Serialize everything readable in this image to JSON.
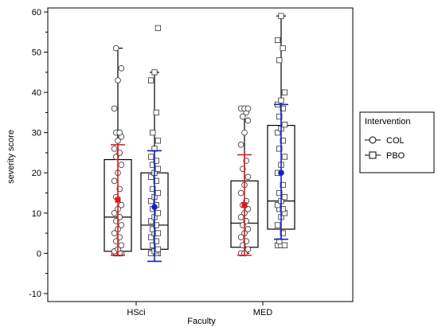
{
  "chart_data": {
    "type": "box",
    "xlabel": "Faculty",
    "ylabel": "severity score",
    "ylim": [
      -12,
      61
    ],
    "yticks": [
      -10,
      0,
      10,
      20,
      30,
      40,
      50,
      60
    ],
    "grid": false,
    "categories": [
      "HSci",
      "MED"
    ],
    "legend": {
      "title": "Intervention",
      "placement": "right",
      "entries": [
        {
          "name": "COL",
          "marker": "circle"
        },
        {
          "name": "PBO",
          "marker": "square"
        }
      ]
    },
    "colors": {
      "COL_mean": "#e8141c",
      "PBO_mean": "#1621cc",
      "box": "#000000",
      "marker_fill": "#ffffff"
    },
    "groups": [
      {
        "category": "HSci",
        "series": "COL",
        "box": {
          "q1": 0.5,
          "median": 9,
          "q3": 23.3,
          "whisker_low": 0,
          "whisker_high": 51
        },
        "mean": 13.3,
        "sd_low": -0.5,
        "sd_high": 27,
        "points": [
          0,
          0,
          0,
          0,
          0,
          0.5,
          1,
          2,
          3,
          4,
          5,
          6,
          7,
          8,
          9,
          10,
          11,
          12,
          14,
          16,
          18,
          20,
          22,
          24,
          25,
          26,
          28,
          29,
          30,
          30,
          36,
          43,
          46,
          51
        ]
      },
      {
        "category": "HSci",
        "series": "PBO",
        "box": {
          "q1": 1,
          "median": 7,
          "q3": 20,
          "whisker_low": 0,
          "whisker_high": 45
        },
        "mean": 11.5,
        "sd_low": -2,
        "sd_high": 25.5,
        "points": [
          0,
          0,
          0,
          0,
          0,
          0,
          0.5,
          1,
          2,
          3,
          4,
          5,
          5,
          6,
          7,
          8,
          9,
          10,
          11,
          12,
          13,
          14,
          15,
          16,
          18,
          19,
          20,
          21,
          22,
          23,
          24,
          26,
          28,
          30,
          35,
          43,
          45,
          56
        ]
      },
      {
        "category": "MED",
        "series": "COL",
        "box": {
          "q1": 1.5,
          "median": 7.5,
          "q3": 18,
          "whisker_low": 0,
          "whisker_high": 36
        },
        "mean": 12,
        "sd_low": -0.5,
        "sd_high": 24.5,
        "points": [
          0,
          0,
          1,
          2,
          3,
          4,
          5,
          6,
          7,
          8,
          9,
          10,
          11,
          12,
          13,
          15,
          17,
          19,
          21,
          23,
          27,
          30,
          33,
          34,
          35,
          36,
          36,
          36
        ]
      },
      {
        "category": "MED",
        "series": "PBO",
        "box": {
          "q1": 6,
          "median": 13,
          "q3": 31.8,
          "whisker_low": 2,
          "whisker_high": 59
        },
        "mean": 20,
        "sd_low": 3.5,
        "sd_high": 37,
        "points": [
          2,
          2,
          2,
          3,
          5,
          7,
          9,
          10,
          11,
          11,
          12,
          13,
          14,
          15,
          17,
          20,
          22,
          24,
          26,
          28,
          30,
          31,
          32,
          34,
          36,
          37,
          38,
          40,
          48,
          51,
          53,
          59
        ]
      }
    ]
  }
}
